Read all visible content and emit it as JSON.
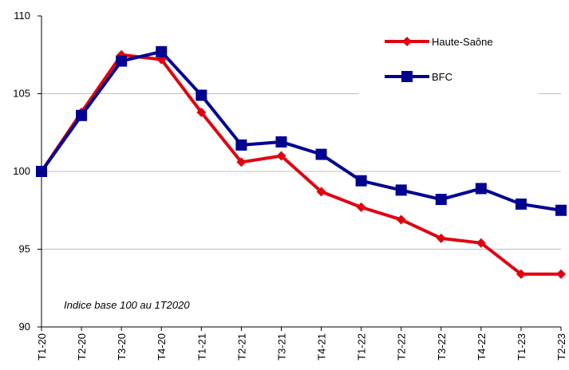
{
  "chart_data": {
    "type": "line",
    "categories": [
      "T1-20",
      "T2-20",
      "T3-20",
      "T4-20",
      "T1-21",
      "T2-21",
      "T3-21",
      "T4-21",
      "T1-22",
      "T2-22",
      "T3-22",
      "T4-22",
      "T1-23",
      "T2-23"
    ],
    "series": [
      {
        "name": "Haute-Saône",
        "color": "#e1000f",
        "marker": "diamond",
        "values": [
          100,
          103.8,
          107.5,
          107.2,
          103.8,
          100.6,
          101.0,
          98.7,
          97.7,
          96.9,
          95.7,
          95.4,
          93.4,
          93.4
        ]
      },
      {
        "name": "BFC",
        "color": "#000091",
        "marker": "square",
        "values": [
          100,
          103.6,
          107.1,
          107.7,
          104.9,
          101.7,
          101.9,
          101.1,
          99.4,
          98.8,
          98.2,
          98.9,
          97.9,
          97.5
        ]
      }
    ],
    "ylim": [
      90,
      110
    ],
    "yticks": [
      90,
      95,
      100,
      105,
      110
    ],
    "grid": true,
    "annotation": "Indice base 100 au 1T2020",
    "legend": "top-right"
  }
}
